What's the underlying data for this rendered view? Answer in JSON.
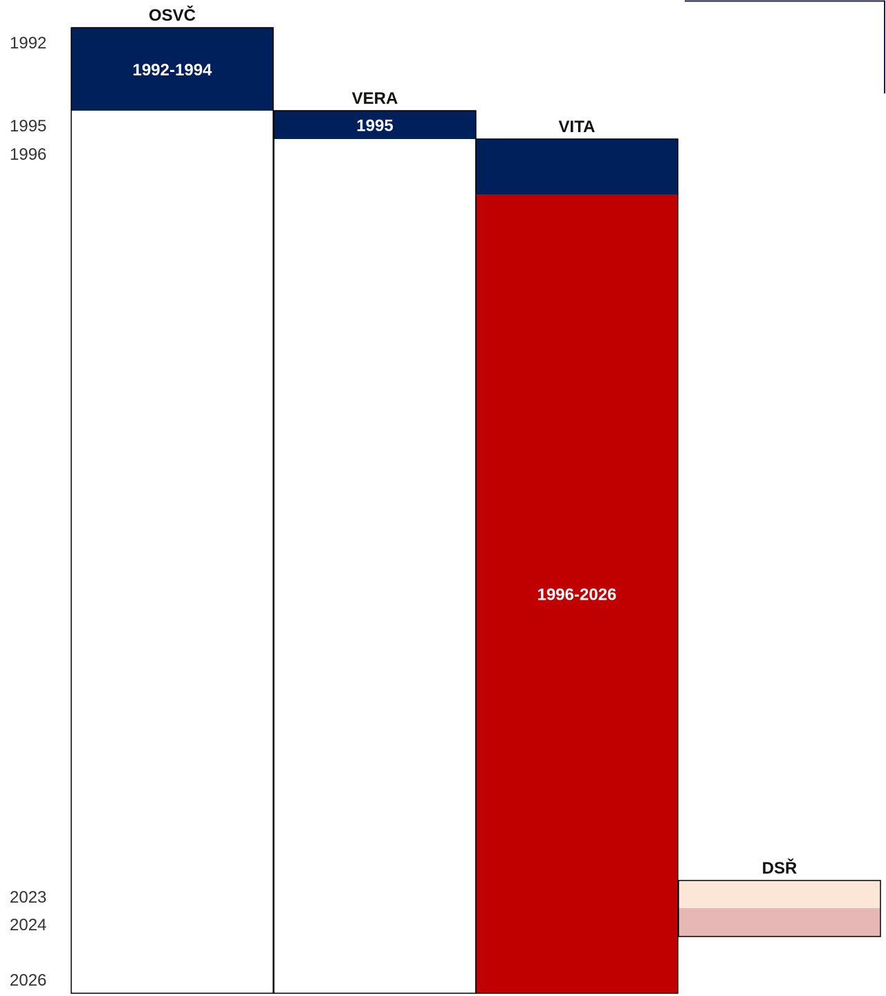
{
  "chart_data": {
    "type": "timeline-columns",
    "title": "",
    "y_axis": {
      "ticks": [
        "1992",
        "1995",
        "1996",
        "2023",
        "2024",
        "2026"
      ]
    },
    "columns": [
      {
        "name": "OSVČ",
        "start": 1992,
        "end": 2026,
        "segments": [
          {
            "from": 1992,
            "to": 1995,
            "label": "1992-1994",
            "color": "#00205B"
          }
        ]
      },
      {
        "name": "VERA",
        "start": 1995,
        "end": 2026,
        "segments": [
          {
            "from": 1995,
            "to": 1996,
            "label": "1995",
            "color": "#00205B"
          }
        ]
      },
      {
        "name": "VITA",
        "start": 1996,
        "end": 2026,
        "segments": [
          {
            "from": 1996,
            "to": 1998,
            "label": "",
            "color": "#00205B"
          },
          {
            "from": 1998,
            "to": 2026,
            "label": "1996-2026",
            "color": "#C00000"
          }
        ]
      },
      {
        "name": "DSŘ",
        "start": 2023,
        "end": 2025,
        "segments": [
          {
            "from": 2023,
            "to": 2024,
            "label": "",
            "color": "#FCE6D8"
          },
          {
            "from": 2024,
            "to": 2025,
            "label": "",
            "color": "#E5B7B5"
          }
        ]
      }
    ]
  }
}
